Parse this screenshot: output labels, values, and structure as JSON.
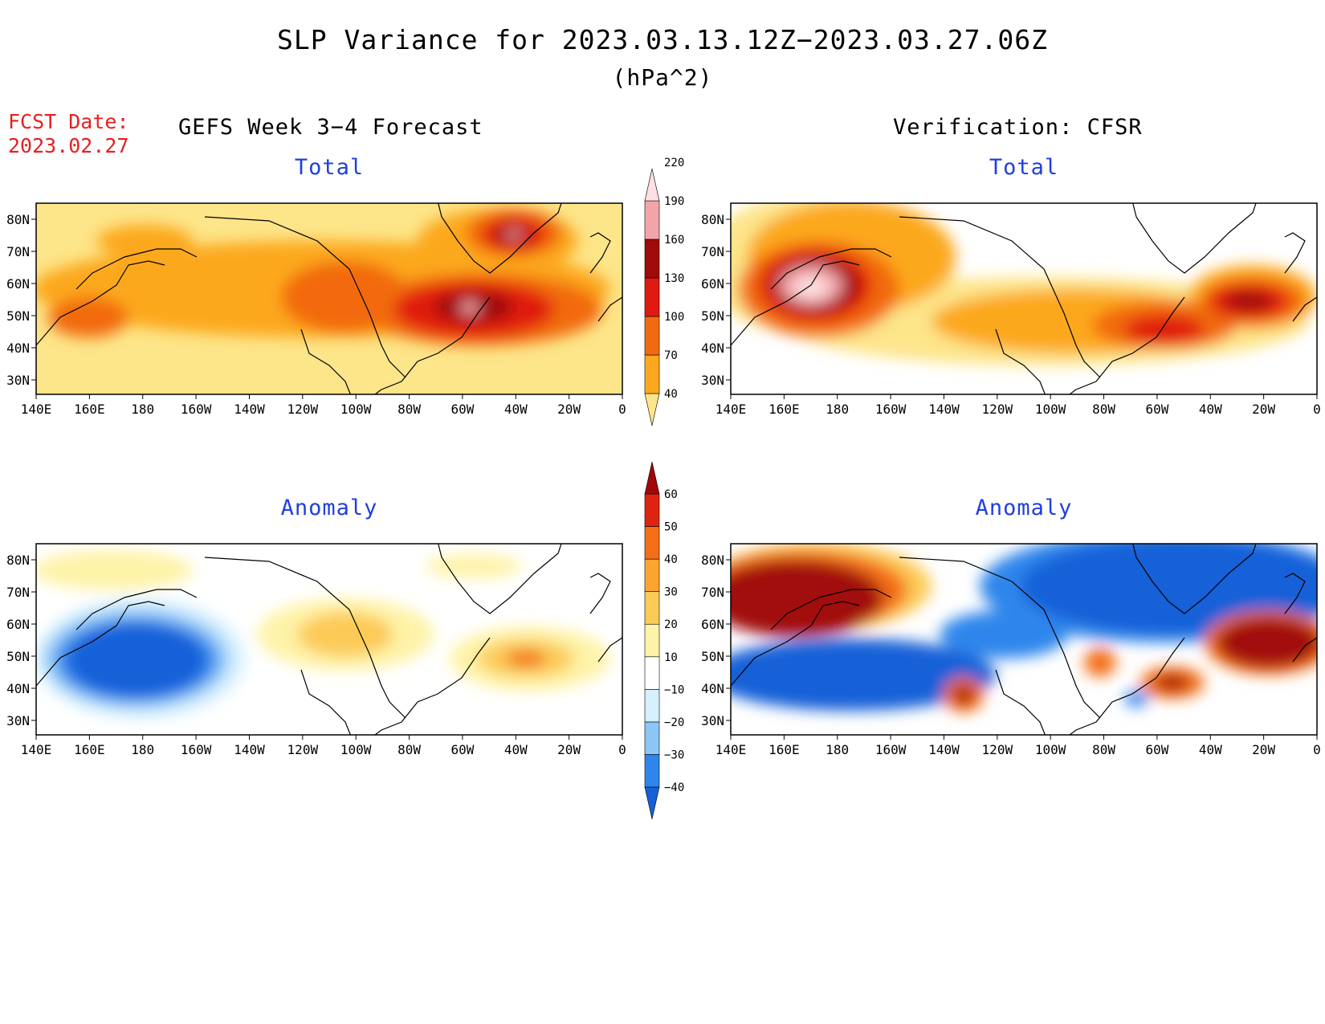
{
  "header": {
    "title": "SLP Variance for 2023.03.13.12Z−2023.03.27.06Z",
    "units": "(hPa^2)",
    "fcst_label": "FCST Date:",
    "fcst_date": "2023.02.27"
  },
  "columns": {
    "left_title": "GEFS Week 3−4 Forecast",
    "right_title": "Verification: CFSR"
  },
  "panels": {
    "total_label": "Total",
    "anomaly_label": "Anomaly"
  },
  "axes": {
    "lat_ticks": [
      "80N",
      "70N",
      "60N",
      "50N",
      "40N",
      "30N"
    ],
    "lon_ticks": [
      "140E",
      "160E",
      "180",
      "160W",
      "140W",
      "120W",
      "100W",
      "80W",
      "60W",
      "40W",
      "20W",
      "0"
    ]
  },
  "colorbars": {
    "total": {
      "levels": [
        "40",
        "70",
        "100",
        "130",
        "160",
        "190",
        "220"
      ],
      "colors": [
        "#fde58a",
        "#fca81e",
        "#f26a10",
        "#e01a10",
        "#a00a0a",
        "#f3a4a8",
        "#fde0e2"
      ]
    },
    "anomaly": {
      "levels": [
        "−40",
        "−30",
        "−20",
        "−10",
        "10",
        "20",
        "30",
        "40",
        "50",
        "60"
      ],
      "colors": [
        "#1560d8",
        "#2e86ec",
        "#8cc6f6",
        "#d6f0fe",
        "#ffffff",
        "#fef3a8",
        "#fcca56",
        "#fba530",
        "#f36e16",
        "#de2410",
        "#a2080a"
      ]
    }
  }
}
